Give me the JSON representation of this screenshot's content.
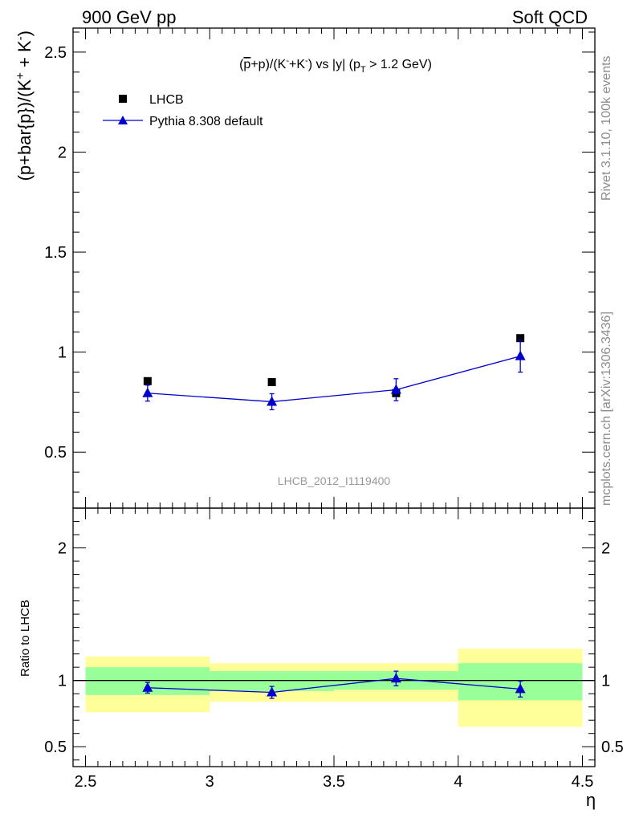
{
  "header": {
    "left": "900 GeV pp",
    "right": "Soft QCD"
  },
  "side_labels": {
    "rivet": "Rivet 3.1.10,  100k events",
    "mcplots": "mcplots.cern.ch [arXiv:1306.3436]"
  },
  "analysis_id": "LHCB_2012_I1119400",
  "chart_data": [
    {
      "type": "scatter",
      "title": "(p̄+p)/(K⁻+K⁻) vs |y| (pT > 1.2 GeV)",
      "ylabel": "(p+bar{p})/(K⁺ + K⁻)",
      "xlim": [
        2.45,
        4.55
      ],
      "ylim": [
        0.22,
        2.62
      ],
      "yticks": [
        0.5,
        1,
        1.5,
        2,
        2.5
      ],
      "ytick_labels": [
        "0.5",
        "1",
        "1.5",
        "2",
        "2.5"
      ],
      "legend_position": "top-left",
      "series": [
        {
          "name": "LHCB",
          "marker": "square",
          "color": "#000000",
          "x": [
            2.75,
            3.25,
            3.75,
            4.25
          ],
          "y": [
            0.855,
            0.85,
            0.795,
            1.07
          ]
        },
        {
          "name": "Pythia 8.308 default",
          "marker": "triangle",
          "color": "#0000cc",
          "x": [
            2.75,
            3.25,
            3.75,
            4.25
          ],
          "y": [
            0.795,
            0.752,
            0.812,
            0.98
          ],
          "yerr": [
            0.04,
            0.04,
            0.055,
            0.08
          ]
        }
      ]
    },
    {
      "type": "scatter",
      "ylabel": "Ratio to LHCB",
      "xlabel": "η",
      "xlim": [
        2.45,
        4.55
      ],
      "ylim": [
        0.35,
        2.3
      ],
      "xticks": [
        2.5,
        3,
        3.5,
        4,
        4.5
      ],
      "xtick_labels": [
        "2.5",
        "3",
        "3.5",
        "4",
        "4.5"
      ],
      "yticks": [
        0.5,
        1,
        2
      ],
      "ytick_labels": [
        "0.5",
        "1",
        "2"
      ],
      "reference_line": 1,
      "bands": {
        "x_edges": [
          [
            2.5,
            3.0
          ],
          [
            3.0,
            3.5
          ],
          [
            3.5,
            4.0
          ],
          [
            4.0,
            4.5
          ]
        ],
        "inner": [
          [
            0.89,
            1.1
          ],
          [
            0.92,
            1.07
          ],
          [
            0.93,
            1.07
          ],
          [
            0.85,
            1.13
          ]
        ],
        "outer": [
          [
            0.76,
            1.18
          ],
          [
            0.84,
            1.13
          ],
          [
            0.84,
            1.13
          ],
          [
            0.65,
            1.24
          ]
        ],
        "inner_color": "#99ff99",
        "outer_color": "#ffff99"
      },
      "series": [
        {
          "name": "Pythia 8.308 default",
          "color": "#0000cc",
          "x": [
            2.75,
            3.25,
            3.75,
            4.25
          ],
          "y": [
            0.945,
            0.91,
            1.015,
            0.935
          ],
          "yerr": [
            0.04,
            0.045,
            0.055,
            0.06
          ]
        }
      ]
    }
  ]
}
